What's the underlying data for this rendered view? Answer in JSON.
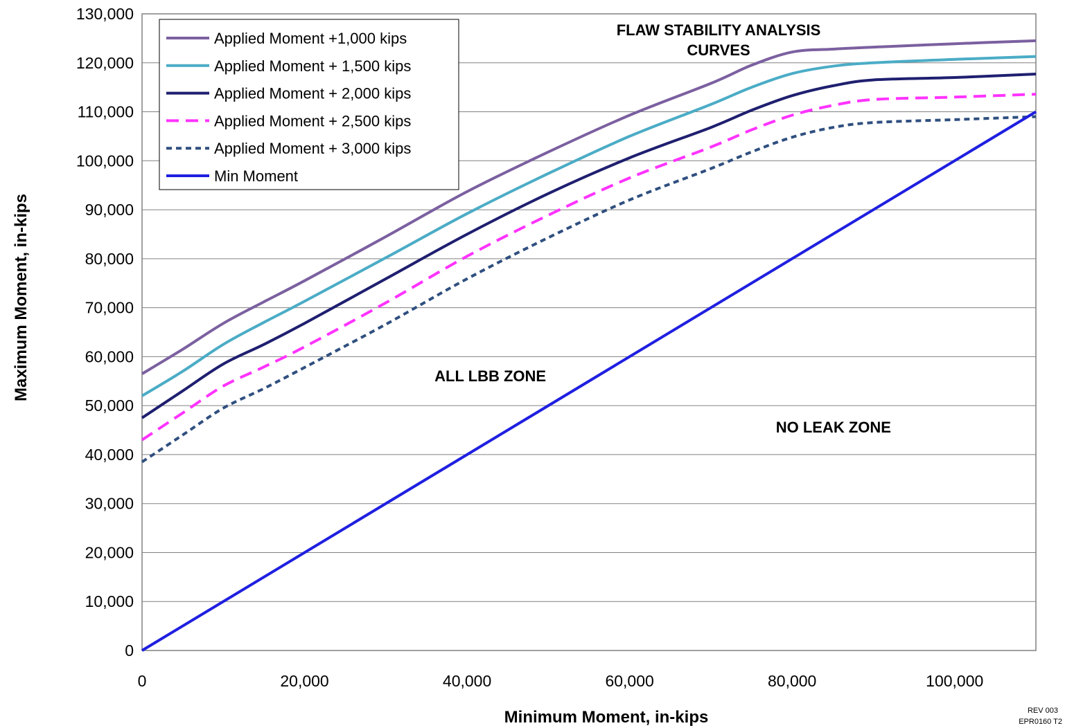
{
  "chart_data": {
    "type": "line",
    "title_lines": [
      "FLAW STABILITY ANALYSIS",
      "CURVES"
    ],
    "xlabel": "Minimum Moment, in-kips",
    "ylabel": "Maximum Moment, in-kips",
    "xlim": [
      0,
      110000
    ],
    "ylim": [
      0,
      130000
    ],
    "x_ticks": [
      0,
      20000,
      40000,
      60000,
      80000,
      100000
    ],
    "x_tick_labels": [
      "0",
      "20,000",
      "40,000",
      "60,000",
      "80,000",
      "100,000"
    ],
    "y_ticks": [
      0,
      10000,
      20000,
      30000,
      40000,
      50000,
      60000,
      70000,
      80000,
      90000,
      100000,
      110000,
      120000,
      130000
    ],
    "y_tick_labels": [
      "0",
      "10,000",
      "20,000",
      "30,000",
      "40,000",
      "50,000",
      "60,000",
      "70,000",
      "80,000",
      "90,000",
      "100,000",
      "110,000",
      "120,000",
      "130,000"
    ],
    "grid": "horizontal",
    "legend_position": "top-left",
    "annotations": [
      {
        "text": "ALL LBB ZONE",
        "x": 36000,
        "y": 55000
      },
      {
        "text": "NO LEAK ZONE",
        "x": 78000,
        "y": 44500
      }
    ],
    "series": [
      {
        "name": "Applied Moment +1,000 kips",
        "color": "#7b60a0",
        "dash": "solid",
        "x": [
          0,
          5000,
          10000,
          15000,
          20000,
          30000,
          40000,
          50000,
          60000,
          70000,
          75000,
          80000,
          85000,
          90000,
          100000,
          110000
        ],
        "y": [
          56500,
          61500,
          66800,
          71200,
          75500,
          84500,
          93700,
          101800,
          109300,
          115800,
          119500,
          122200,
          122800,
          123200,
          123900,
          124500
        ]
      },
      {
        "name": "Applied Moment + 1,500 kips",
        "color": "#4bacc6",
        "dash": "solid",
        "x": [
          0,
          5000,
          10000,
          15000,
          20000,
          30000,
          40000,
          50000,
          60000,
          70000,
          75000,
          80000,
          85000,
          90000,
          100000,
          110000
        ],
        "y": [
          52000,
          57000,
          62500,
          67000,
          71300,
          80200,
          89200,
          97400,
          105000,
          111500,
          115000,
          117800,
          119300,
          120000,
          120700,
          121300
        ]
      },
      {
        "name": "Applied Moment + 2,000 kips",
        "color": "#1f1f70",
        "dash": "solid",
        "x": [
          0,
          5000,
          10000,
          15000,
          20000,
          30000,
          40000,
          50000,
          60000,
          70000,
          75000,
          80000,
          85000,
          90000,
          100000,
          110000
        ],
        "y": [
          47500,
          53000,
          58500,
          62500,
          66800,
          75900,
          85000,
          93300,
          100600,
          106800,
          110300,
          113300,
          115300,
          116500,
          117000,
          117700
        ]
      },
      {
        "name": "Applied Moment + 2,500 kips",
        "color": "#ff33ff",
        "dash": "dashed",
        "x": [
          0,
          5000,
          10000,
          15000,
          20000,
          30000,
          40000,
          50000,
          60000,
          70000,
          75000,
          80000,
          85000,
          90000,
          100000,
          110000
        ],
        "y": [
          43000,
          48500,
          54000,
          57900,
          62000,
          71000,
          80500,
          88900,
          96500,
          102800,
          106300,
          109300,
          111300,
          112500,
          113000,
          113600
        ]
      },
      {
        "name": "Applied Moment + 3,000 kips",
        "color": "#2f4f7f",
        "dash": "dotted",
        "x": [
          0,
          5000,
          10000,
          15000,
          20000,
          30000,
          40000,
          50000,
          60000,
          70000,
          75000,
          80000,
          85000,
          90000,
          100000,
          110000
        ],
        "y": [
          38500,
          44000,
          49500,
          53500,
          57800,
          66600,
          75900,
          84300,
          92000,
          98400,
          101800,
          104800,
          106800,
          107800,
          108400,
          109000
        ]
      },
      {
        "name": "Min Moment",
        "color": "#1f1fe0",
        "dash": "solid",
        "x": [
          0,
          110000
        ],
        "y": [
          0,
          110000
        ]
      }
    ],
    "footer_lines": [
      "REV 003",
      "EPR0160 T2"
    ]
  }
}
